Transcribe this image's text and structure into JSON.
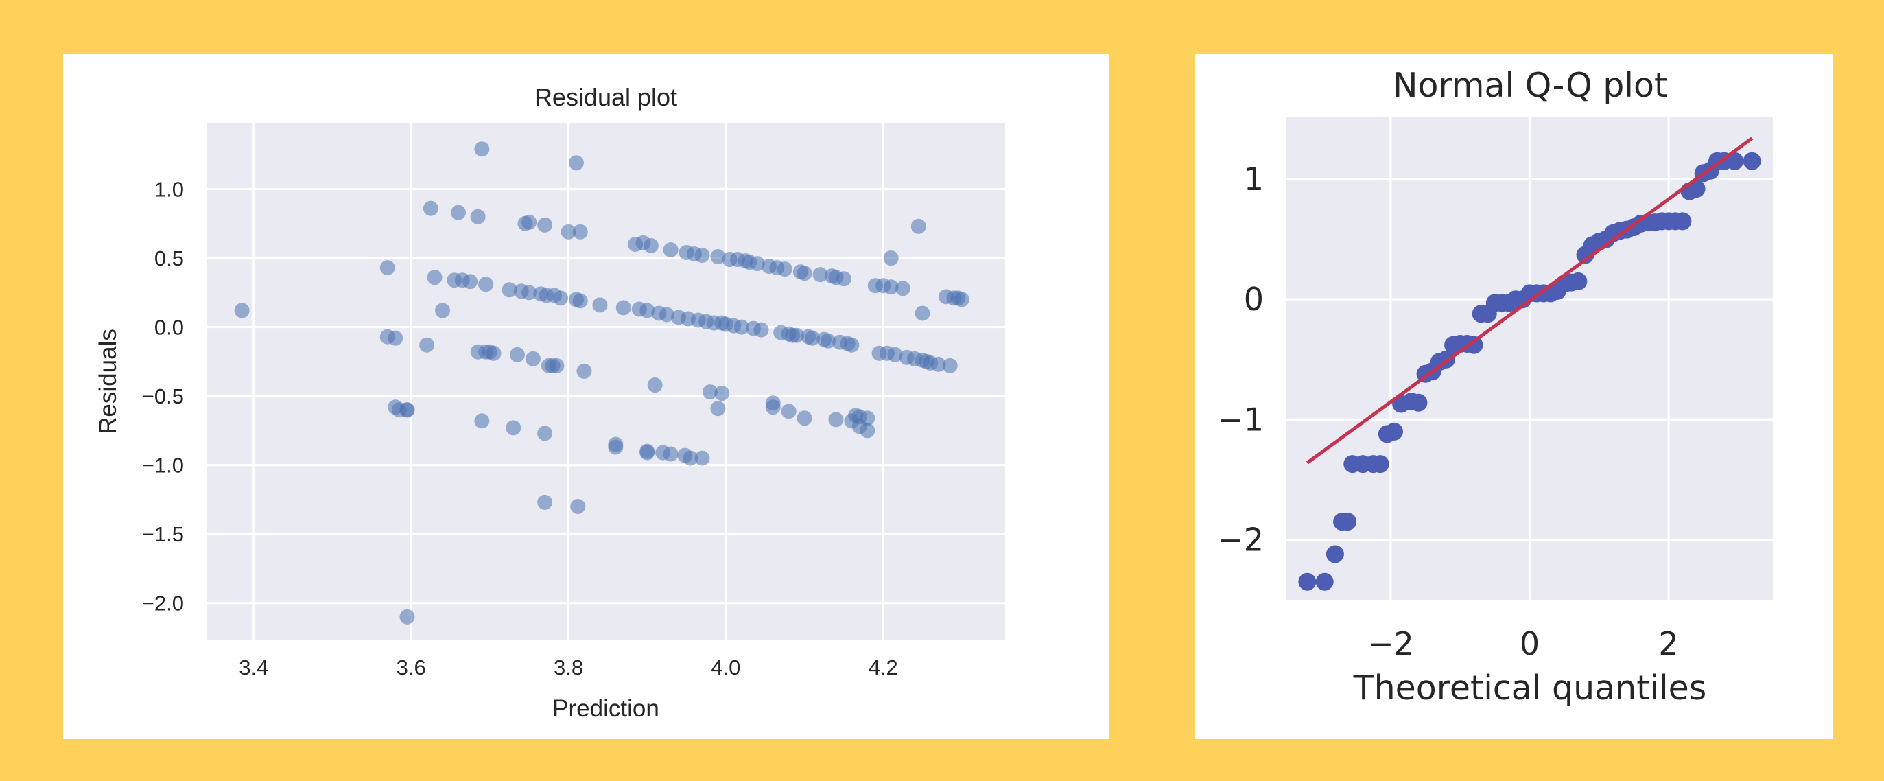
{
  "chart_data": [
    {
      "type": "scatter",
      "title": "Residual plot",
      "xlabel": "Prediction",
      "ylabel": "Residuals",
      "xlim": [
        3.34,
        4.355
      ],
      "ylim": [
        -2.27,
        1.48
      ],
      "xticks": [
        "3.4",
        "3.6",
        "3.8",
        "4.0",
        "4.2"
      ],
      "yticks": [
        "−2.0",
        "−1.5",
        "−1.0",
        "−0.5",
        "0.0",
        "0.5",
        "1.0"
      ],
      "xtick_values": [
        3.4,
        3.6,
        3.8,
        4.0,
        4.2
      ],
      "ytick_values": [
        -2.0,
        -1.5,
        -1.0,
        -0.5,
        0.0,
        0.5,
        1.0
      ],
      "grid": true,
      "point_color": "#4C72B0",
      "point_opacity": 0.55,
      "x": [
        3.385,
        3.57,
        3.57,
        3.58,
        3.58,
        3.585,
        3.595,
        3.595,
        3.595,
        3.62,
        3.625,
        3.63,
        3.655,
        3.66,
        3.665,
        3.675,
        3.685,
        3.685,
        3.69,
        3.695,
        3.695,
        3.7,
        3.705,
        3.725,
        3.735,
        3.74,
        3.745,
        3.75,
        3.75,
        3.755,
        3.765,
        3.77,
        3.77,
        3.772,
        3.775,
        3.78,
        3.782,
        3.785,
        3.79,
        3.8,
        3.81,
        3.81,
        3.812,
        3.815,
        3.815,
        3.82,
        3.84,
        3.86,
        3.87,
        3.885,
        3.89,
        3.895,
        3.9,
        3.9,
        3.905,
        3.91,
        3.915,
        3.92,
        3.925,
        3.93,
        3.94,
        3.948,
        3.95,
        3.952,
        3.955,
        3.96,
        3.965,
        3.97,
        3.975,
        3.98,
        3.985,
        3.99,
        3.995,
        3.995,
        4.0,
        4.005,
        4.01,
        4.015,
        4.02,
        4.025,
        4.03,
        4.035,
        4.04,
        4.045,
        4.055,
        4.06,
        4.065,
        4.07,
        4.075,
        4.08,
        4.085,
        4.09,
        4.095,
        4.1,
        4.105,
        4.11,
        4.12,
        4.125,
        4.13,
        4.135,
        4.14,
        4.145,
        4.15,
        4.155,
        4.16,
        4.165,
        4.17,
        4.18,
        4.19,
        4.195,
        4.2,
        4.205,
        4.21,
        4.215,
        4.225,
        4.23,
        4.24,
        4.245,
        4.25,
        4.255,
        4.26,
        4.27,
        4.28,
        4.285,
        4.29,
        4.295,
        4.3,
        3.64,
        3.69,
        3.73,
        3.77,
        3.86,
        3.9,
        3.93,
        3.97,
        3.99,
        4.06,
        4.08,
        4.1,
        4.14,
        4.16,
        4.17,
        4.18,
        4.21,
        4.25
      ],
      "y": [
        0.12,
        0.43,
        -0.07,
        -0.58,
        -0.08,
        -0.6,
        -0.6,
        -2.1,
        -0.6,
        -0.13,
        0.86,
        0.36,
        0.34,
        0.83,
        0.34,
        0.33,
        0.8,
        -0.18,
        1.29,
        0.31,
        -0.18,
        -0.18,
        -0.19,
        0.27,
        -0.2,
        0.26,
        0.75,
        0.25,
        0.76,
        -0.23,
        0.24,
        -1.27,
        0.74,
        0.23,
        -0.28,
        -0.28,
        0.23,
        -0.28,
        0.21,
        0.69,
        1.19,
        0.2,
        -1.3,
        0.19,
        0.69,
        -0.32,
        0.16,
        -0.85,
        0.14,
        0.6,
        0.13,
        0.61,
        -0.9,
        0.12,
        0.59,
        -0.42,
        0.1,
        -0.91,
        0.09,
        0.56,
        0.07,
        -0.93,
        0.54,
        0.06,
        -0.95,
        0.53,
        0.05,
        0.52,
        0.04,
        -0.47,
        0.03,
        0.51,
        0.03,
        -0.48,
        0.02,
        0.49,
        0.01,
        0.49,
        0.0,
        0.48,
        0.47,
        -0.01,
        0.46,
        -0.02,
        0.44,
        -0.55,
        0.43,
        -0.04,
        0.42,
        -0.05,
        -0.06,
        -0.06,
        0.4,
        0.39,
        -0.07,
        -0.08,
        0.38,
        -0.09,
        -0.1,
        0.37,
        0.36,
        -0.11,
        0.35,
        -0.12,
        -0.13,
        -0.64,
        -0.65,
        -0.66,
        0.3,
        -0.19,
        0.3,
        -0.19,
        0.29,
        -0.2,
        0.28,
        -0.22,
        -0.23,
        0.73,
        -0.24,
        -0.25,
        -0.26,
        -0.27,
        0.22,
        -0.28,
        0.21,
        0.21,
        0.2,
        0.12,
        -0.68,
        -0.73,
        -0.77,
        -0.87,
        -0.91,
        -0.92,
        -0.95,
        -0.59,
        -0.58,
        -0.61,
        -0.66,
        -0.67,
        -0.68,
        -0.72,
        -0.75,
        0.5,
        0.1
      ]
    },
    {
      "type": "scatter",
      "title": "Normal Q-Q plot",
      "xlabel": "Theoretical quantiles",
      "ylabel": "",
      "xlim": [
        -3.5,
        3.5
      ],
      "ylim": [
        -2.5,
        1.52
      ],
      "xticks": [
        "−2",
        "0",
        "2"
      ],
      "yticks": [
        "−2",
        "−1",
        "0",
        "1"
      ],
      "xtick_values": [
        -2,
        0,
        2
      ],
      "ytick_values": [
        -2,
        -1,
        0,
        1
      ],
      "grid": true,
      "point_color": "#4D5DB3",
      "line_color": "#C53350",
      "reference_line": {
        "x": [
          -3.2,
          3.2
        ],
        "y": [
          -1.36,
          1.34
        ]
      },
      "x": [
        -3.2,
        -2.95,
        -2.8,
        -2.7,
        -2.62,
        -2.55,
        -2.4,
        -2.25,
        -2.15,
        -2.05,
        -1.95,
        -1.85,
        -1.7,
        -1.6,
        -1.5,
        -1.4,
        -1.3,
        -1.2,
        -1.1,
        -1.0,
        -0.9,
        -0.8,
        -0.7,
        -0.6,
        -0.5,
        -0.4,
        -0.3,
        -0.2,
        -0.1,
        0.0,
        0.1,
        0.2,
        0.3,
        0.4,
        0.5,
        0.6,
        0.7,
        0.8,
        0.9,
        1.0,
        1.1,
        1.2,
        1.3,
        1.4,
        1.5,
        1.6,
        1.7,
        1.8,
        1.9,
        2.0,
        2.1,
        2.2,
        2.3,
        2.4,
        2.5,
        2.6,
        2.7,
        2.8,
        2.95,
        3.2
      ],
      "y": [
        -2.35,
        -2.35,
        -2.12,
        -1.85,
        -1.85,
        -1.37,
        -1.37,
        -1.37,
        -1.37,
        -1.12,
        -1.1,
        -0.87,
        -0.85,
        -0.86,
        -0.62,
        -0.6,
        -0.52,
        -0.5,
        -0.38,
        -0.37,
        -0.37,
        -0.38,
        -0.12,
        -0.12,
        -0.03,
        -0.03,
        -0.03,
        0.0,
        0.0,
        0.05,
        0.05,
        0.05,
        0.05,
        0.07,
        0.13,
        0.14,
        0.15,
        0.37,
        0.45,
        0.48,
        0.5,
        0.55,
        0.57,
        0.58,
        0.6,
        0.63,
        0.64,
        0.64,
        0.65,
        0.65,
        0.65,
        0.65,
        0.9,
        0.92,
        1.05,
        1.07,
        1.15,
        1.15,
        1.15,
        1.15
      ]
    }
  ]
}
